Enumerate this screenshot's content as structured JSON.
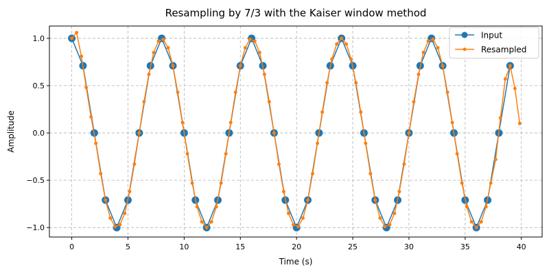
{
  "chart_data": {
    "type": "line",
    "title": "Resampling by 7/3 with the Kaiser window method",
    "xlabel": "Time (s)",
    "ylabel": "Amplitude",
    "xlim": [
      -1.99,
      41.85
    ],
    "ylim": [
      -1.1,
      1.13
    ],
    "xticks": [
      0,
      5,
      10,
      15,
      20,
      25,
      30,
      35,
      40
    ],
    "xtick_labels": [
      "0",
      "5",
      "10",
      "15",
      "20",
      "25",
      "30",
      "35",
      "40"
    ],
    "yticks": [
      -1.0,
      -0.5,
      0.0,
      0.5,
      1.0
    ],
    "ytick_labels": [
      "−1.0",
      "−0.5",
      "0.0",
      "0.5",
      "1.0"
    ],
    "grid": true,
    "legend_position": "top-right",
    "series": [
      {
        "name": "Input",
        "color": "#1f77b4",
        "marker": "circle",
        "x_step": 1,
        "values": [
          1,
          0.71,
          0,
          -0.71,
          -1,
          -0.71,
          0,
          0.71,
          1,
          0.71,
          0,
          -0.71,
          -1,
          -0.71,
          0,
          0.71,
          1,
          0.71,
          0,
          -0.71,
          -1,
          -0.71,
          0,
          0.71,
          1,
          0.71,
          0,
          -0.71,
          -1,
          -0.71,
          0,
          0.71,
          1,
          0.71,
          0,
          -0.71,
          -1,
          -0.71,
          0,
          0.71
        ]
      },
      {
        "name": "Resampled",
        "color": "#ff7f0e",
        "marker": "dot",
        "x_step": 0.428571,
        "values": [
          1.0,
          1.06,
          0.81,
          0.48,
          0.17,
          -0.11,
          -0.43,
          -0.71,
          -0.9,
          -0.99,
          -0.97,
          -0.85,
          -0.62,
          -0.33,
          0,
          0.33,
          0.62,
          0.85,
          0.97,
          0.99,
          0.9,
          0.71,
          0.43,
          0.11,
          -0.22,
          -0.53,
          -0.78,
          -0.94,
          -1.0,
          -0.94,
          -0.78,
          -0.53,
          -0.22,
          0.11,
          0.43,
          0.71,
          0.9,
          0.99,
          0.97,
          0.85,
          0.62,
          0.33,
          0,
          -0.33,
          -0.62,
          -0.85,
          -0.97,
          -0.99,
          -0.9,
          -0.71,
          -0.43,
          -0.11,
          0.22,
          0.53,
          0.78,
          0.94,
          1.0,
          0.94,
          0.78,
          0.53,
          0.22,
          -0.11,
          -0.43,
          -0.71,
          -0.9,
          -0.99,
          -0.97,
          -0.85,
          -0.62,
          -0.33,
          0,
          0.33,
          0.62,
          0.85,
          0.97,
          0.99,
          0.9,
          0.71,
          0.43,
          0.11,
          -0.22,
          -0.53,
          -0.78,
          -0.94,
          -1.0,
          -0.94,
          -0.78,
          -0.53,
          -0.28,
          0.16,
          0.57,
          0.71,
          0.47,
          0.1
        ]
      }
    ]
  }
}
